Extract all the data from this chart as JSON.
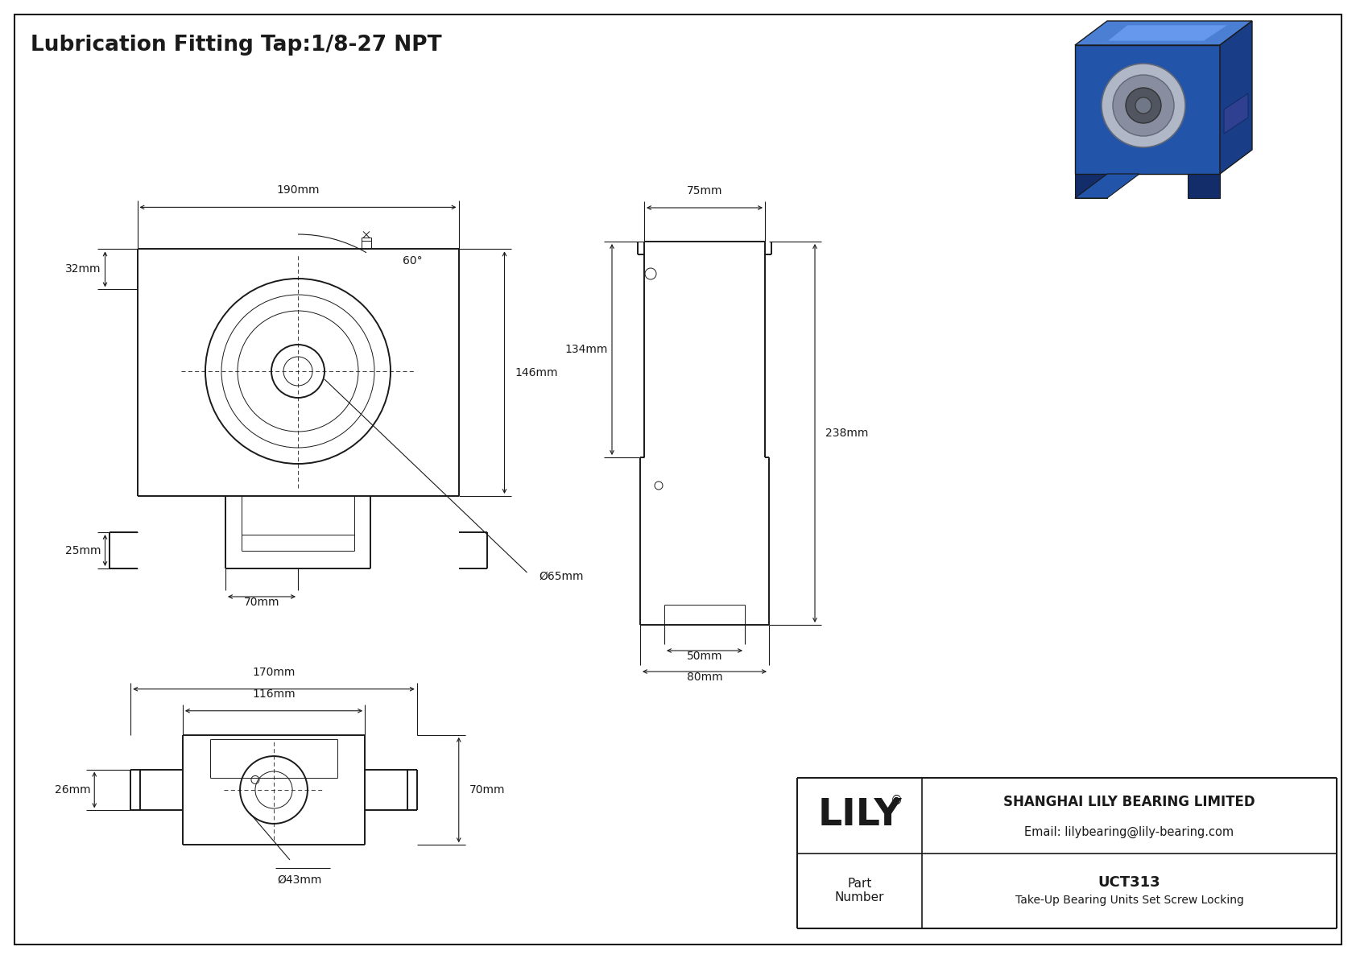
{
  "title": "Lubrication Fitting Tap:1/8-27 NPT",
  "bg_color": "#ffffff",
  "line_color": "#1a1a1a",
  "company": "SHANGHAI LILY BEARING LIMITED",
  "email": "Email: lilybearing@lily-bearing.com",
  "part_number_label": "Part\nNumber",
  "part_number": "UCT313",
  "part_desc": "Take-Up Bearing Units Set Screw Locking",
  "logo": "LILY",
  "angle_label": "60°",
  "dim_190": "190mm",
  "dim_146": "146mm",
  "dim_32": "32mm",
  "dim_25": "25mm",
  "dim_70": "70mm",
  "dim_d65": "Ø65mm",
  "dim_75": "75mm",
  "dim_134": "134mm",
  "dim_238": "238mm",
  "dim_50": "50mm",
  "dim_80": "80mm",
  "dim_170": "170mm",
  "dim_116": "116mm",
  "dim_70b": "70mm",
  "dim_26": "26mm",
  "dim_d43": "Ø43mm"
}
